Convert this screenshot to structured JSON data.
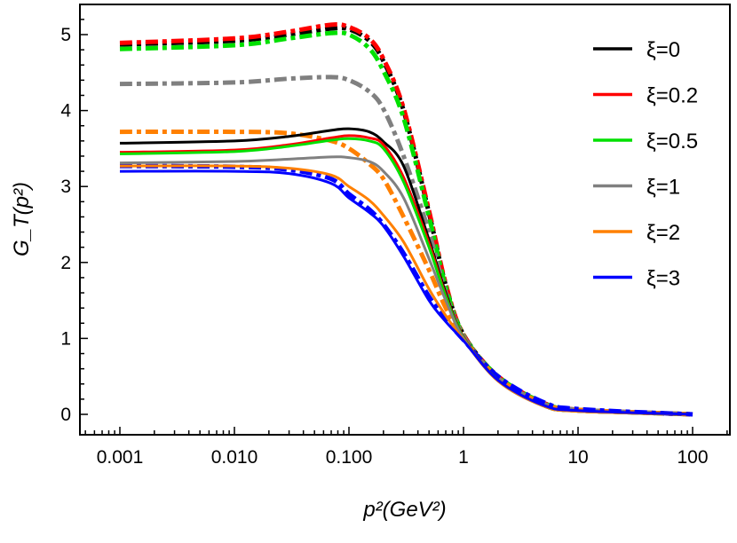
{
  "chart_data": {
    "type": "line",
    "xlabel": "p²(GeV²)",
    "ylabel": "G_T(p²)",
    "x_scale": "log",
    "xlim": [
      0.0005,
      200
    ],
    "ylim": [
      -0.3,
      5.45
    ],
    "x_ticks": [
      0.001,
      0.01,
      0.1,
      1,
      10,
      100
    ],
    "x_tick_labels": [
      "0.001",
      "0.010",
      "0.100",
      "1",
      "10",
      "100"
    ],
    "y_ticks": [
      0,
      1,
      2,
      3,
      4,
      5
    ],
    "y_tick_labels": [
      "0",
      "1",
      "2",
      "3",
      "4",
      "5"
    ],
    "grid": false,
    "legend_position": "top-right",
    "legend": [
      {
        "label": "ξ=0",
        "color": "#000000"
      },
      {
        "label": "ξ=0.2",
        "color": "#ff0000"
      },
      {
        "label": "ξ=0.5",
        "color": "#00e000"
      },
      {
        "label": "ξ=1",
        "color": "#808080"
      },
      {
        "label": "ξ=2",
        "color": "#ff8000"
      },
      {
        "label": "ξ=3",
        "color": "#0000ff"
      }
    ],
    "x": [
      0.001,
      0.01,
      0.03,
      0.07,
      0.1,
      0.15,
      0.2,
      0.3,
      0.5,
      0.7,
      1,
      2,
      5,
      10,
      100
    ],
    "series": [
      {
        "xi": "0",
        "style": "dashdot",
        "color": "#000000",
        "values": [
          4.87,
          4.92,
          5.0,
          5.08,
          5.07,
          4.92,
          4.65,
          4.0,
          2.65,
          1.7,
          1.05,
          0.5,
          0.15,
          0.06,
          0.0
        ]
      },
      {
        "xi": "0.2",
        "style": "dashdot",
        "color": "#ff0000",
        "values": [
          4.89,
          4.95,
          5.04,
          5.13,
          5.1,
          4.95,
          4.68,
          4.03,
          2.68,
          1.72,
          1.05,
          0.5,
          0.15,
          0.06,
          0.0
        ]
      },
      {
        "xi": "0.5",
        "style": "dashdot",
        "color": "#00e000",
        "values": [
          4.81,
          4.86,
          4.95,
          5.02,
          5.0,
          4.82,
          4.52,
          3.9,
          2.6,
          1.68,
          1.04,
          0.5,
          0.15,
          0.06,
          0.0
        ]
      },
      {
        "xi": "1",
        "style": "dashdot",
        "color": "#808080",
        "values": [
          4.35,
          4.37,
          4.42,
          4.44,
          4.4,
          4.25,
          4.02,
          3.4,
          2.4,
          1.6,
          1.03,
          0.48,
          0.14,
          0.06,
          0.0
        ]
      },
      {
        "xi": "2",
        "style": "dashdot",
        "color": "#ff8000",
        "values": [
          3.72,
          3.72,
          3.7,
          3.6,
          3.5,
          3.3,
          3.1,
          2.6,
          1.9,
          1.4,
          1.0,
          0.48,
          0.14,
          0.06,
          0.0
        ]
      },
      {
        "xi": "3",
        "style": "dashdot",
        "color": "#0000ff",
        "values": [
          3.27,
          3.26,
          3.22,
          3.1,
          2.9,
          2.7,
          2.5,
          2.12,
          1.55,
          1.25,
          0.98,
          0.5,
          0.16,
          0.07,
          0.0
        ]
      },
      {
        "xi": "0",
        "style": "solid",
        "color": "#000000",
        "values": [
          3.57,
          3.6,
          3.66,
          3.74,
          3.76,
          3.72,
          3.59,
          3.27,
          2.3,
          1.6,
          1.02,
          0.45,
          0.11,
          0.04,
          0.0
        ]
      },
      {
        "xi": "0.2",
        "style": "solid",
        "color": "#ff0000",
        "values": [
          3.45,
          3.48,
          3.55,
          3.64,
          3.67,
          3.64,
          3.55,
          3.12,
          2.25,
          1.57,
          1.02,
          0.45,
          0.11,
          0.04,
          0.0
        ]
      },
      {
        "xi": "0.5",
        "style": "solid",
        "color": "#00e000",
        "values": [
          3.43,
          3.46,
          3.53,
          3.61,
          3.63,
          3.6,
          3.5,
          3.06,
          2.2,
          1.55,
          1.01,
          0.45,
          0.11,
          0.04,
          0.0
        ]
      },
      {
        "xi": "1",
        "style": "solid",
        "color": "#808080",
        "values": [
          3.31,
          3.33,
          3.36,
          3.39,
          3.38,
          3.33,
          3.2,
          2.85,
          2.05,
          1.5,
          1.0,
          0.44,
          0.11,
          0.04,
          0.0
        ]
      },
      {
        "xi": "2",
        "style": "solid",
        "color": "#ff8000",
        "values": [
          3.27,
          3.27,
          3.24,
          3.15,
          3.0,
          2.82,
          2.62,
          2.27,
          1.65,
          1.3,
          0.98,
          0.44,
          0.11,
          0.04,
          0.0
        ]
      },
      {
        "xi": "3",
        "style": "solid",
        "color": "#0000ff",
        "values": [
          3.2,
          3.2,
          3.17,
          3.04,
          2.85,
          2.66,
          2.48,
          2.08,
          1.5,
          1.22,
          0.97,
          0.45,
          0.12,
          0.05,
          0.0
        ]
      }
    ]
  }
}
